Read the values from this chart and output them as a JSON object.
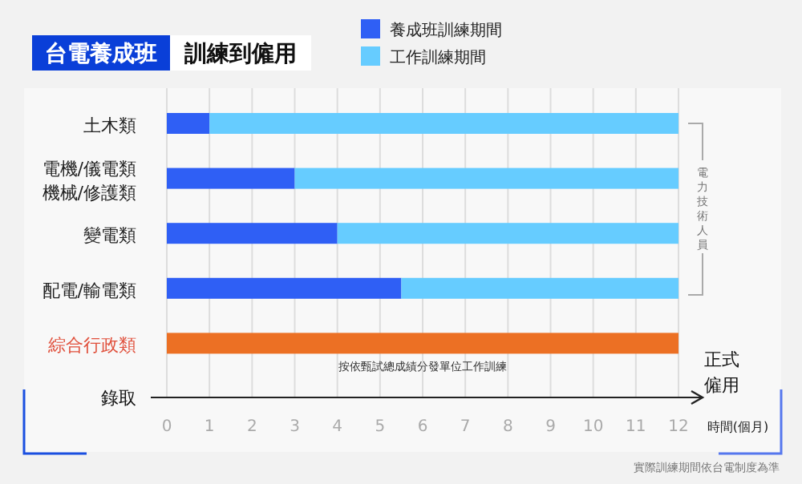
{
  "chart_data": {
    "type": "bar",
    "orientation": "horizontal",
    "stacked": true,
    "title": "台電養成班",
    "subtitle": "訓練到僱用",
    "xlabel": "時間(個月)",
    "categories": [
      "土木類",
      "電機/儀電類機械/修護類",
      "變電類",
      "配電/輸電類",
      "綜合行政類"
    ],
    "series": [
      {
        "name": "養成班訓練期間",
        "color": "#2f5ff5",
        "values": [
          1,
          3,
          4,
          5.5,
          null
        ]
      },
      {
        "name": "工作訓練期間",
        "color": "#66ccff",
        "values": [
          11,
          9,
          8,
          6.5,
          null
        ]
      },
      {
        "color": "#ec7024",
        "values": [
          null,
          null,
          null,
          null,
          12
        ]
      }
    ],
    "xlim": [
      0,
      12
    ],
    "xticks": [
      0,
      1,
      2,
      3,
      4,
      5,
      6,
      7,
      8,
      9,
      10,
      11,
      12
    ],
    "grid": "x",
    "legend": "top",
    "annotations": [
      {
        "text": "按依甄試總成績分發單位工作訓練",
        "x": 6,
        "y": "綜合行政類"
      },
      "錄取",
      "正式僱用",
      "電力技術人員",
      "實際訓練期間依台電制度為準"
    ]
  }
}
